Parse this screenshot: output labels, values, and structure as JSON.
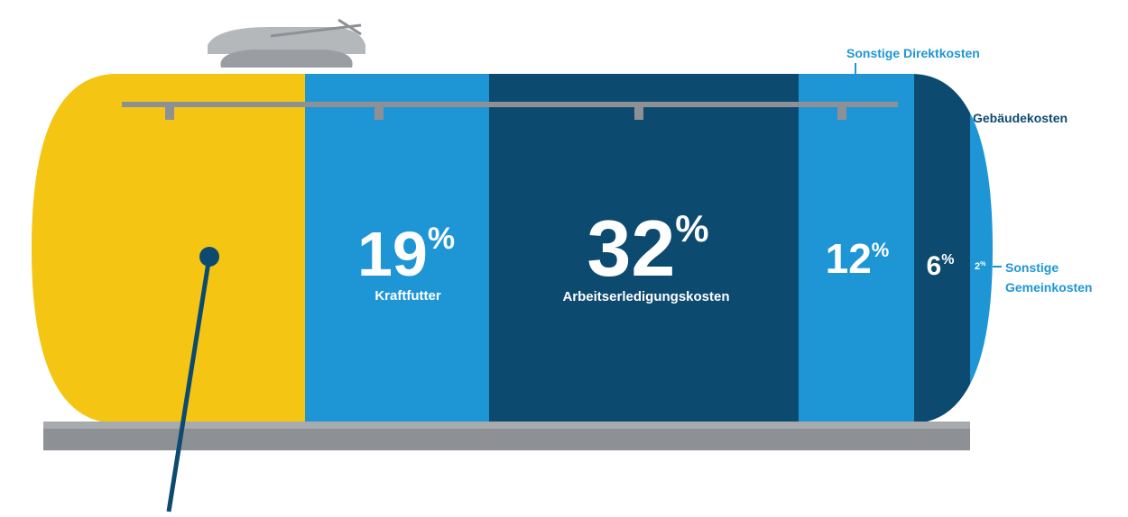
{
  "segments": [
    {
      "value": 19,
      "unit": "%",
      "label": "Kraftfutter"
    },
    {
      "value": 32,
      "unit": "%",
      "label": "Arbeitserledigungskosten"
    },
    {
      "value": 12,
      "unit": "%"
    },
    {
      "value": 6,
      "unit": "%"
    }
  ],
  "callouts": [
    {
      "text": "Sonstige Direktkosten"
    },
    {
      "text": "Gebäudekosten"
    },
    {
      "value": 2,
      "unit": "%",
      "lines": [
        "Sonstige",
        "Gemeinkosten"
      ]
    }
  ]
}
